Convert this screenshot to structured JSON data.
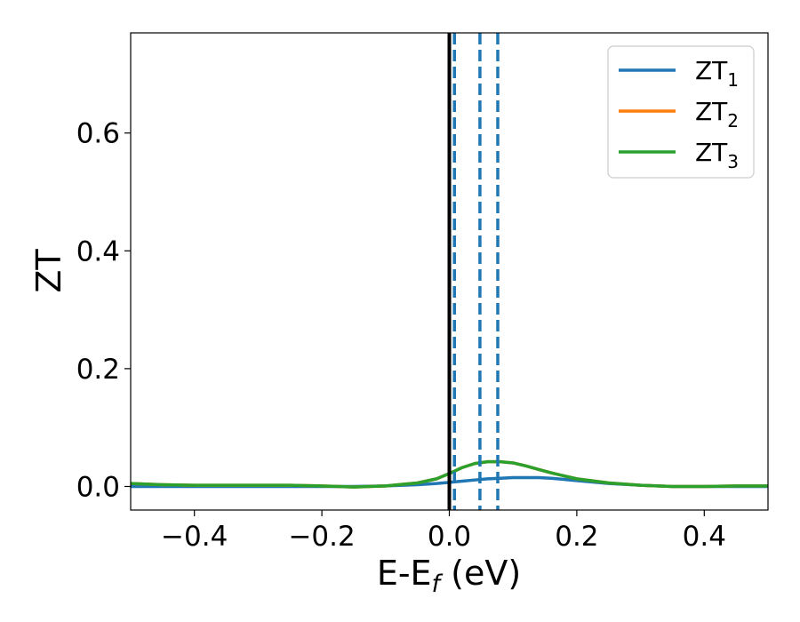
{
  "chart_data": {
    "type": "line",
    "xlabel": {
      "main": "E-E",
      "sub": "f",
      "unit": " (eV)"
    },
    "ylabel": "ZT",
    "xlim": [
      -0.5,
      0.5
    ],
    "ylim": [
      -0.04,
      0.77
    ],
    "xticks": [
      -0.4,
      -0.2,
      0.0,
      0.2,
      0.4
    ],
    "xtick_labels": [
      "−0.4",
      "−0.2",
      "0.0",
      "0.2",
      "0.4"
    ],
    "yticks": [
      0.0,
      0.2,
      0.4,
      0.6
    ],
    "ytick_labels": [
      "0.0",
      "0.2",
      "0.4",
      "0.6"
    ],
    "grid": false,
    "legend_position": "top-right",
    "solid_vline": {
      "x": 0.0,
      "color": "#000000"
    },
    "dashed_vlines": {
      "x": [
        0.008,
        0.048,
        0.076
      ],
      "color": "#1f77b4"
    },
    "x": [
      -0.5,
      -0.45,
      -0.4,
      -0.35,
      -0.3,
      -0.25,
      -0.2,
      -0.15,
      -0.1,
      -0.05,
      -0.02,
      0.0,
      0.02,
      0.04,
      0.06,
      0.08,
      0.1,
      0.12,
      0.14,
      0.16,
      0.2,
      0.25,
      0.3,
      0.35,
      0.4,
      0.45,
      0.5
    ],
    "series": [
      {
        "name": "ZT",
        "sub": "1",
        "color": "#1f77b4",
        "values": [
          0.0,
          0.0,
          0.0,
          0.0,
          0.0,
          0.0,
          0.0,
          0.0,
          0.001,
          0.003,
          0.005,
          0.007,
          0.009,
          0.011,
          0.013,
          0.014,
          0.015,
          0.015,
          0.015,
          0.014,
          0.01,
          0.005,
          0.002,
          0.0,
          0.0,
          0.0,
          0.0
        ]
      },
      {
        "name": "ZT",
        "sub": "2",
        "color": "#ff7f0e",
        "values": [
          0.005,
          0.003,
          0.002,
          0.002,
          0.002,
          0.002,
          0.001,
          -0.001,
          0.001,
          0.006,
          0.013,
          0.022,
          0.032,
          0.039,
          0.042,
          0.042,
          0.04,
          0.035,
          0.029,
          0.023,
          0.013,
          0.006,
          0.002,
          0.0,
          0.0,
          0.001,
          0.001
        ]
      },
      {
        "name": "ZT",
        "sub": "3",
        "color": "#2ca02c",
        "values": [
          0.005,
          0.003,
          0.002,
          0.002,
          0.002,
          0.002,
          0.001,
          -0.001,
          0.001,
          0.006,
          0.013,
          0.022,
          0.032,
          0.039,
          0.042,
          0.042,
          0.04,
          0.035,
          0.029,
          0.023,
          0.013,
          0.006,
          0.002,
          0.0,
          0.0,
          0.001,
          0.001
        ]
      }
    ]
  }
}
